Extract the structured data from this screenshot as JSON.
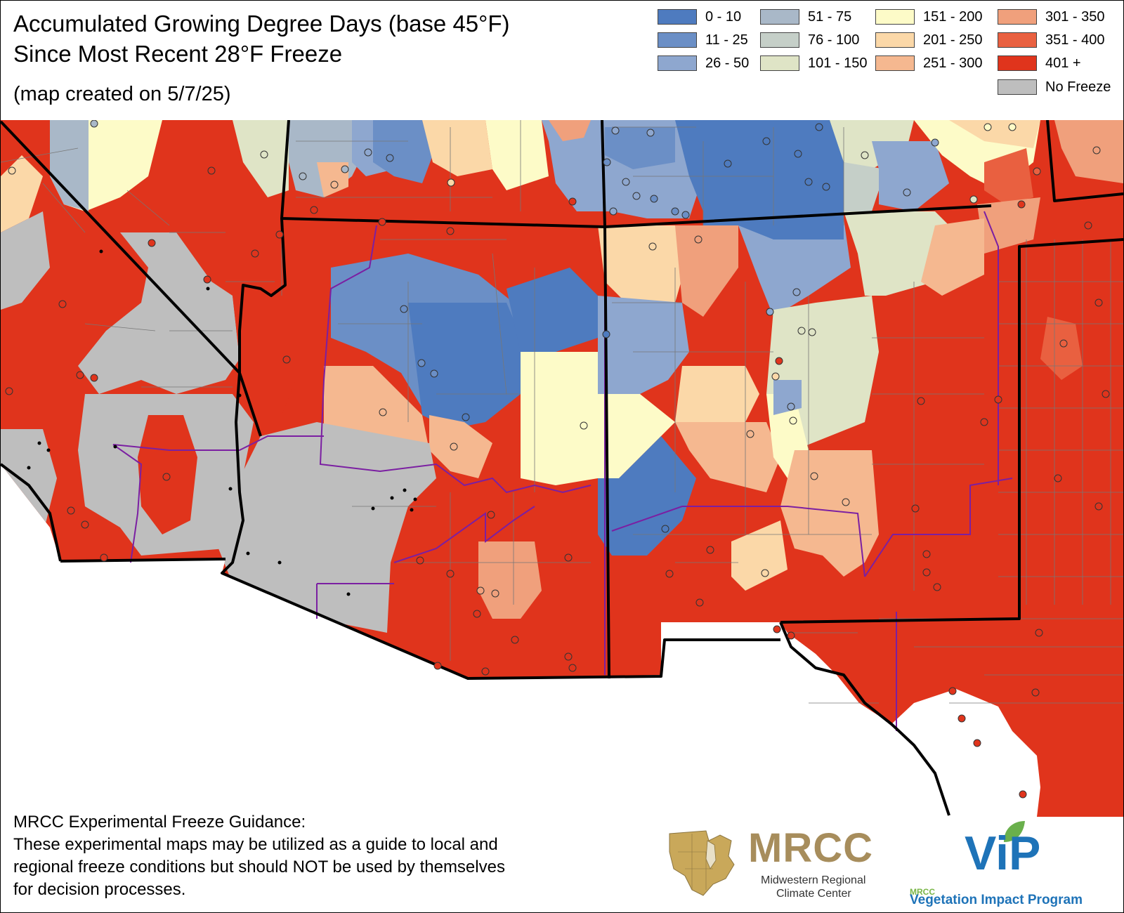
{
  "title": {
    "line1": "Accumulated Growing Degree Days (base 45°F)",
    "line2": "Since Most Recent 28°F Freeze",
    "created": "(map created on 5/7/25)"
  },
  "legend": {
    "items": [
      {
        "label": "0 - 10",
        "color": "#4e7bbf"
      },
      {
        "label": "11 - 25",
        "color": "#6b8fc6"
      },
      {
        "label": "26 - 50",
        "color": "#8ea7cf"
      },
      {
        "label": "51 - 75",
        "color": "#a9b8c8"
      },
      {
        "label": "76 - 100",
        "color": "#c5cfc8"
      },
      {
        "label": "101 - 150",
        "color": "#dfe4c6"
      },
      {
        "label": "151 - 200",
        "color": "#fdfbc8"
      },
      {
        "label": "201 - 250",
        "color": "#fbd8a8"
      },
      {
        "label": "251 - 300",
        "color": "#f5b890"
      },
      {
        "label": "301 - 350",
        "color": "#f0a07c"
      },
      {
        "label": "351 - 400",
        "color": "#e96040"
      },
      {
        "label": "401 +",
        "color": "#e0341c"
      },
      {
        "label": "No Freeze",
        "color": "#bebebe"
      }
    ]
  },
  "disclaimer": {
    "heading": "MRCC Experimental Freeze Guidance:",
    "lines": [
      "These experimental maps may be utilized as a guide to local and",
      "regional freeze conditions but should NOT be used by themselves",
      "for decision processes."
    ]
  },
  "logos": {
    "mrcc": {
      "wordmark": "MRCC",
      "line1": "Midwestern Regional",
      "line2": "Climate Center"
    },
    "vip": {
      "small": "MRCC",
      "wordmark": "ViP",
      "line": "Vegetation Impact Program"
    }
  },
  "colors": {
    "state_border": "#000000",
    "climate_division_border": "#7b1fa2",
    "county_line": "#777777",
    "station_marker_stroke": "#333333"
  }
}
